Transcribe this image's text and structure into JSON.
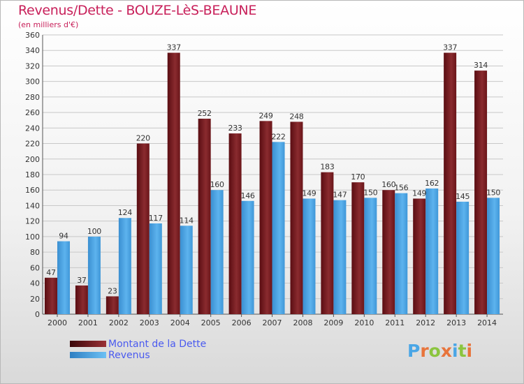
{
  "header": {
    "title": "Revenus/Dette - BOUZE-LèS-BEAUNE",
    "subtitle": "(en milliers d'€)"
  },
  "logo": {
    "text": "Proxiti"
  },
  "colors": {
    "dette": "#7a1f23",
    "revenus": "#4aa6e6",
    "title": "#c8205a",
    "legend_text": "#4a5aef",
    "logo": [
      "#4aa6e6",
      "#e8743b",
      "#8bc53f",
      "#e8743b",
      "#4aa6e6",
      "#8bc53f",
      "#e8743b"
    ]
  },
  "chart_data": {
    "type": "bar",
    "title": "Revenus/Dette - BOUZE-LèS-BEAUNE",
    "ylabel": "(en milliers d'€)",
    "xlabel": "",
    "categories": [
      "2000",
      "2001",
      "2002",
      "2003",
      "2004",
      "2005",
      "2006",
      "2007",
      "2008",
      "2009",
      "2010",
      "2011",
      "2012",
      "2013",
      "2014"
    ],
    "series": [
      {
        "name": "Montant de la Dette",
        "values": [
          47,
          37,
          23,
          220,
          337,
          252,
          233,
          249,
          248,
          183,
          170,
          160,
          149,
          337,
          314
        ]
      },
      {
        "name": "Revenus",
        "values": [
          94,
          100,
          124,
          117,
          114,
          160,
          146,
          222,
          149,
          147,
          150,
          156,
          162,
          145,
          150
        ]
      }
    ],
    "ylim": [
      0,
      360
    ],
    "yticks": [
      0,
      20,
      40,
      60,
      80,
      100,
      120,
      140,
      160,
      180,
      200,
      220,
      240,
      260,
      280,
      300,
      320,
      340,
      360
    ],
    "grid": true,
    "legend_position": "bottom-left"
  }
}
